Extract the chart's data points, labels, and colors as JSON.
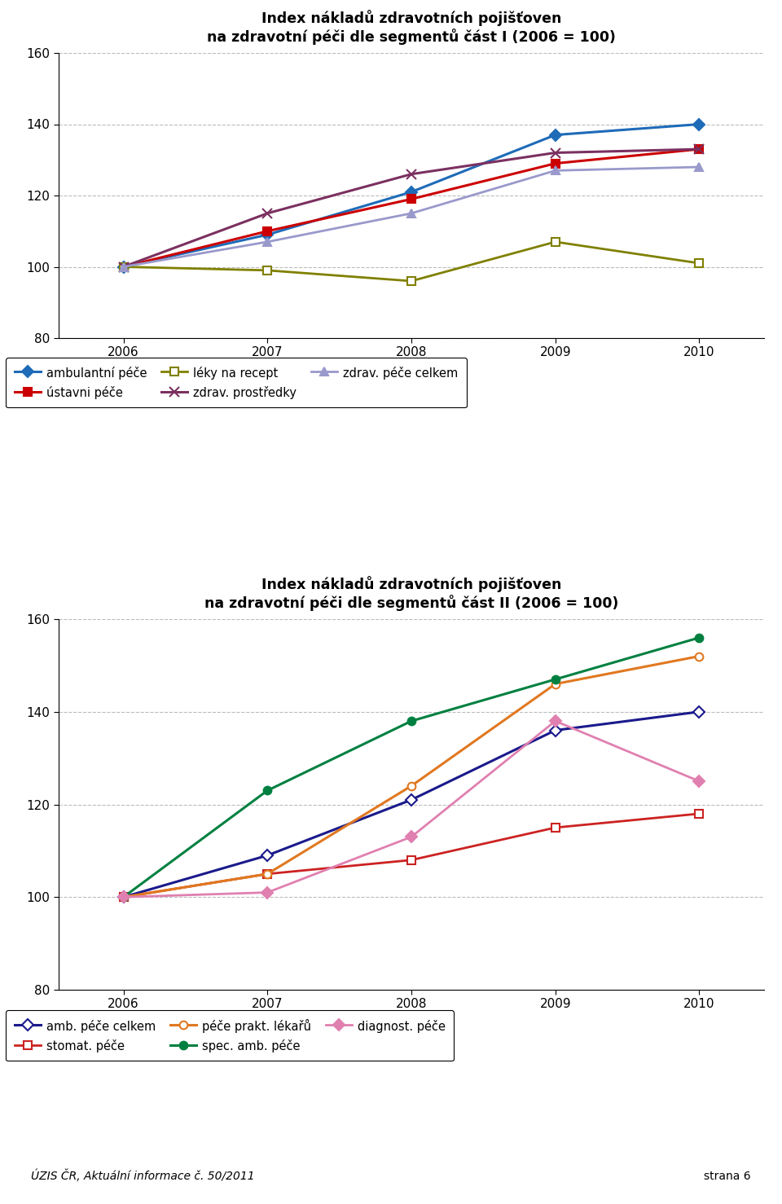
{
  "years": [
    2006,
    2007,
    2008,
    2009,
    2010
  ],
  "chart1_title_line1": "Index nákladů zdravotních pojišťoven",
  "chart1_title_line2": "na zdravotní péči dle segmentů část I (2006 = 100)",
  "chart1_series": [
    {
      "name": "ambulantní péče",
      "values": [
        100,
        109,
        121,
        137,
        140
      ],
      "color": "#1e6bb8",
      "marker": "D",
      "mfc": "#1e6bb8",
      "mec": "#1e6bb8",
      "linewidth": 2.2,
      "ms": 7
    },
    {
      "name": "ústavni péče",
      "values": [
        100,
        110,
        119,
        129,
        133
      ],
      "color": "#cc0000",
      "marker": "s",
      "mfc": "#cc0000",
      "mec": "#cc0000",
      "linewidth": 2.2,
      "ms": 7
    },
    {
      "name": "léky na recept",
      "values": [
        100,
        99,
        96,
        107,
        101
      ],
      "color": "#808000",
      "marker": "s",
      "mfc": "white",
      "mec": "#808000",
      "linewidth": 2.0,
      "ms": 7
    },
    {
      "name": "zdrav. prostředky",
      "values": [
        100,
        115,
        126,
        132,
        133
      ],
      "color": "#7b3060",
      "marker": "x",
      "mfc": "#7b3060",
      "mec": "#7b3060",
      "linewidth": 2.2,
      "ms": 9
    },
    {
      "name": "zdrav. péče celkem",
      "values": [
        100,
        107,
        115,
        127,
        128
      ],
      "color": "#9999cc",
      "marker": "^",
      "mfc": "#9999cc",
      "mec": "#9999cc",
      "linewidth": 2.0,
      "ms": 7
    }
  ],
  "chart2_title_line1": "Index nákladů zdravotních pojišťoven",
  "chart2_title_line2": "na zdravotní péči dle segmentů část II (2006 = 100)",
  "chart2_series": [
    {
      "name": "amb. péče celkem",
      "values": [
        100,
        109,
        121,
        136,
        140
      ],
      "color": "#1a1a8c",
      "marker": "D",
      "mfc": "white",
      "mec": "#1a1a8c",
      "linewidth": 2.2,
      "ms": 7
    },
    {
      "name": "stomat. péče",
      "values": [
        100,
        105,
        108,
        115,
        118
      ],
      "color": "#cc2222",
      "marker": "s",
      "mfc": "white",
      "mec": "#cc2222",
      "linewidth": 2.0,
      "ms": 7
    },
    {
      "name": "péče prakt. lékařů",
      "values": [
        100,
        105,
        124,
        146,
        152
      ],
      "color": "#e07820",
      "marker": "o",
      "mfc": "white",
      "mec": "#e07820",
      "linewidth": 2.2,
      "ms": 7
    },
    {
      "name": "spec. amb. péče",
      "values": [
        100,
        123,
        138,
        147,
        156
      ],
      "color": "#008040",
      "marker": "o",
      "mfc": "#008040",
      "mec": "#008040",
      "linewidth": 2.2,
      "ms": 7
    },
    {
      "name": "diagnost. péče",
      "values": [
        100,
        101,
        113,
        138,
        125
      ],
      "color": "#e080b0",
      "marker": "D",
      "mfc": "#e080b0",
      "mec": "#e080b0",
      "linewidth": 2.0,
      "ms": 7
    }
  ],
  "ylim": [
    80,
    160
  ],
  "yticks": [
    80,
    100,
    120,
    140,
    160
  ],
  "grid_color": "#bbbbbb",
  "background_color": "#ffffff",
  "footer_left": "ÚZIS ČR, Aktuální informace č. 50/2011",
  "footer_right": "strana 6"
}
